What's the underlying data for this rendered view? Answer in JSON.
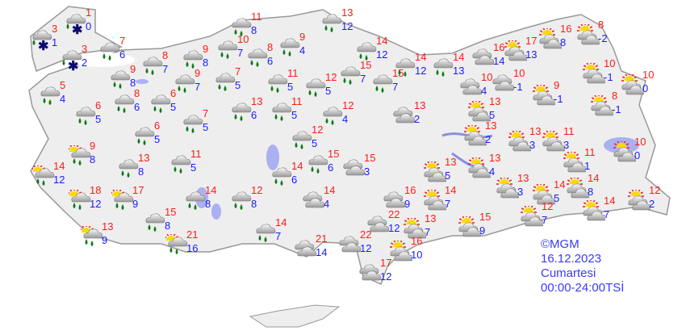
{
  "colors": {
    "high": "#ff1a1a",
    "low": "#1a1aff",
    "land": "#eeeeee",
    "border": "#aaaaaa",
    "water": "#aab0f0",
    "legend": "#3a3aff"
  },
  "legend": {
    "copyright": "©MGM",
    "date": "16.12.2023",
    "day": "Cumartesi",
    "period": "00:00-24:00TSİ"
  },
  "stations": [
    {
      "icon": "snow-rain",
      "high": "1",
      "low": "0"
    },
    {
      "icon": "snow-rain",
      "high": "3",
      "low": "1"
    },
    {
      "icon": "snow-rain",
      "high": "3",
      "low": "2"
    },
    {
      "icon": "rain",
      "high": "7",
      "low": "6"
    },
    {
      "icon": "rain",
      "high": "8",
      "low": "7"
    },
    {
      "icon": "rain",
      "high": "9",
      "low": "8"
    },
    {
      "icon": "rain",
      "high": "5",
      "low": "4"
    },
    {
      "icon": "rain",
      "high": "6",
      "low": "5"
    },
    {
      "icon": "rain",
      "high": "8",
      "low": "6"
    },
    {
      "icon": "rain",
      "high": "6",
      "low": "5"
    },
    {
      "icon": "rain",
      "high": "9",
      "low": "8"
    },
    {
      "icon": "rain",
      "high": "9",
      "low": "7"
    },
    {
      "icon": "rain",
      "high": "10",
      "low": "7"
    },
    {
      "icon": "rain",
      "high": "11",
      "low": "8"
    },
    {
      "icon": "rain",
      "high": "7",
      "low": "5"
    },
    {
      "icon": "rain",
      "high": "7",
      "low": "5"
    },
    {
      "icon": "rain",
      "high": "6",
      "low": "5"
    },
    {
      "icon": "rain",
      "high": "8",
      "low": "6"
    },
    {
      "icon": "rain",
      "high": "9",
      "low": "4"
    },
    {
      "icon": "rain",
      "high": "11",
      "low": "5"
    },
    {
      "icon": "rain",
      "high": "13",
      "low": "6"
    },
    {
      "icon": "rain",
      "high": "11",
      "low": "5"
    },
    {
      "icon": "rain",
      "high": "12",
      "low": "5"
    },
    {
      "icon": "rain",
      "high": "12",
      "low": "4"
    },
    {
      "icon": "rain",
      "high": "13",
      "low": "12"
    },
    {
      "icon": "rain",
      "high": "14",
      "low": "12"
    },
    {
      "icon": "rain",
      "high": "15",
      "low": "7"
    },
    {
      "icon": "rain",
      "high": "15",
      "low": "7"
    },
    {
      "icon": "rain",
      "high": "14",
      "low": "12"
    },
    {
      "icon": "rain",
      "high": "14",
      "low": "13"
    },
    {
      "icon": "cloudy",
      "high": "13",
      "low": "2"
    },
    {
      "icon": "cloudy",
      "high": "16",
      "low": "14"
    },
    {
      "icon": "partly-cloudy",
      "high": "17",
      "low": "13"
    },
    {
      "icon": "partly-cloudy",
      "high": "16",
      "low": "8"
    },
    {
      "icon": "partly-cloudy",
      "high": "8",
      "low": "-2"
    },
    {
      "icon": "cloudy",
      "high": "10",
      "low": "4"
    },
    {
      "icon": "cloudy",
      "high": "10",
      "low": "-1"
    },
    {
      "icon": "partly-cloudy",
      "high": "9",
      "low": "-1"
    },
    {
      "icon": "partly-cloudy",
      "high": "10",
      "low": "-1"
    },
    {
      "icon": "partly-cloudy",
      "high": "10",
      "low": "0"
    },
    {
      "icon": "partly-cloudy",
      "high": "8",
      "low": "-1"
    },
    {
      "icon": "partly-cloudy",
      "high": "13",
      "low": "5"
    },
    {
      "icon": "partly-cloudy",
      "high": "13",
      "low": "2"
    },
    {
      "icon": "partly-cloudy",
      "high": "13",
      "low": "3"
    },
    {
      "icon": "partly-cloudy",
      "high": "11",
      "low": "3"
    },
    {
      "icon": "partly-cloudy",
      "high": "13",
      "low": "4"
    },
    {
      "icon": "partly-cloudy",
      "high": "10",
      "low": "0"
    },
    {
      "icon": "partly-cloudy",
      "high": "11",
      "low": "1"
    },
    {
      "icon": "partly-cloudy",
      "high": "13",
      "low": "3"
    },
    {
      "icon": "partly-cloudy",
      "high": "14",
      "low": "5"
    },
    {
      "icon": "partly-cloudy",
      "high": "14",
      "low": "8"
    },
    {
      "icon": "partly-cloudy",
      "high": "12",
      "low": "7"
    },
    {
      "icon": "partly-cloudy",
      "high": "14",
      "low": "7"
    },
    {
      "icon": "partly-cloudy",
      "high": "12",
      "low": "2"
    },
    {
      "icon": "partly-cloudy",
      "high": "15",
      "low": "9"
    },
    {
      "icon": "partly-cloudy",
      "high": "13",
      "low": "5"
    },
    {
      "icon": "partly-cloudy",
      "high": "14",
      "low": "7"
    },
    {
      "icon": "partly-cloudy",
      "high": "13",
      "low": "7"
    },
    {
      "icon": "partly-cloudy",
      "high": "16",
      "low": "10"
    },
    {
      "icon": "cloudy",
      "high": "16",
      "low": "9"
    },
    {
      "icon": "cloudy",
      "high": "22",
      "low": "12"
    },
    {
      "icon": "cloudy",
      "high": "22",
      "low": "12"
    },
    {
      "icon": "cloudy",
      "high": "21",
      "low": "14"
    },
    {
      "icon": "cloudy",
      "high": "17",
      "low": "12"
    },
    {
      "icon": "cloudy",
      "high": "15",
      "low": "3"
    },
    {
      "icon": "cloudy",
      "high": "14",
      "low": "4"
    },
    {
      "icon": "rain",
      "high": "14",
      "low": "6"
    },
    {
      "icon": "rain",
      "high": "15",
      "low": "6"
    },
    {
      "icon": "rain",
      "high": "12",
      "low": "5"
    },
    {
      "icon": "rain",
      "high": "12",
      "low": "8"
    },
    {
      "icon": "rain",
      "high": "14",
      "low": "7"
    },
    {
      "icon": "rain",
      "high": "14",
      "low": "8"
    },
    {
      "icon": "rain",
      "high": "15",
      "low": "8"
    },
    {
      "icon": "sun-rain",
      "high": "21",
      "low": "16"
    },
    {
      "icon": "sun-rain",
      "high": "17",
      "low": "9"
    },
    {
      "icon": "sun-rain",
      "high": "13",
      "low": "9"
    },
    {
      "icon": "sun-rain",
      "high": "18",
      "low": "12"
    },
    {
      "icon": "sun-rain",
      "high": "9",
      "low": "8"
    },
    {
      "icon": "sun-rain",
      "high": "14",
      "low": "12"
    },
    {
      "icon": "rain",
      "high": "13",
      "low": "8"
    },
    {
      "icon": "rain",
      "high": "11",
      "low": "5"
    }
  ]
}
